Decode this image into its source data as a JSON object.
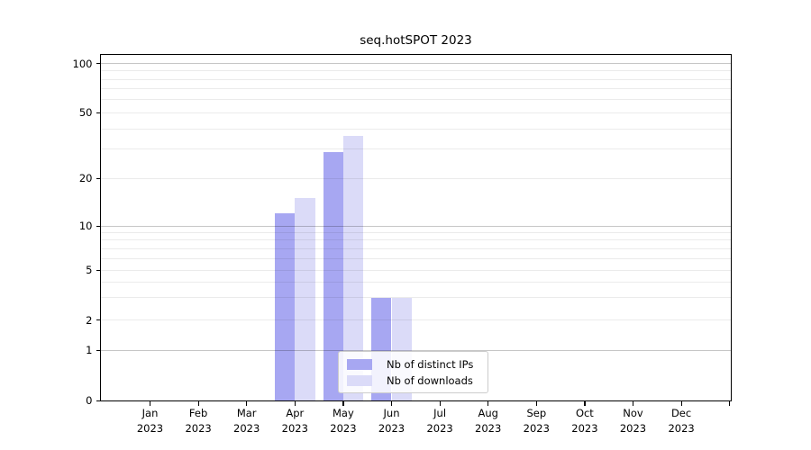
{
  "window": {
    "background": "#ffffff"
  },
  "chart_data": {
    "type": "bar",
    "title": "seq.hotSPOT 2023",
    "categories": [
      "Jan 2023",
      "Feb 2023",
      "Mar 2023",
      "Apr 2023",
      "May 2023",
      "Jun 2023",
      "Jul 2023",
      "Aug 2023",
      "Sep 2023",
      "Oct 2023",
      "Nov 2023",
      "Dec 2023"
    ],
    "series": [
      {
        "name": "Nb of distinct IPs",
        "color": "#a7a7f2",
        "values": [
          0,
          0,
          0,
          12,
          29,
          3,
          0,
          0,
          0,
          0,
          0,
          0
        ]
      },
      {
        "name": "Nb of downloads",
        "color": "#dbdbf8",
        "values": [
          0,
          0,
          0,
          15,
          36,
          3,
          0,
          0,
          0,
          0,
          0,
          0
        ]
      }
    ],
    "xlabel": "",
    "ylabel": "",
    "y_axis": {
      "scale": "log-with-zero",
      "tick_values": [
        0,
        1,
        2,
        5,
        10,
        20,
        50,
        100
      ],
      "tick_labels": [
        "0",
        "1",
        "2",
        "5",
        "10",
        "20",
        "50",
        "100"
      ],
      "major_gridlines": [
        1,
        10,
        100
      ],
      "minor_gridlines": [
        2,
        3,
        4,
        5,
        6,
        7,
        8,
        9,
        20,
        30,
        40,
        50,
        60,
        70,
        80,
        90
      ],
      "ylim": [
        0,
        110
      ]
    },
    "grid": "horizontal",
    "legend_position": "lower center"
  },
  "colors": {
    "major_grid": "#c6c6c6",
    "minor_grid": "#ebebeb",
    "spine": "#000000",
    "legend_border": "#cccccc",
    "text": "#000000"
  }
}
